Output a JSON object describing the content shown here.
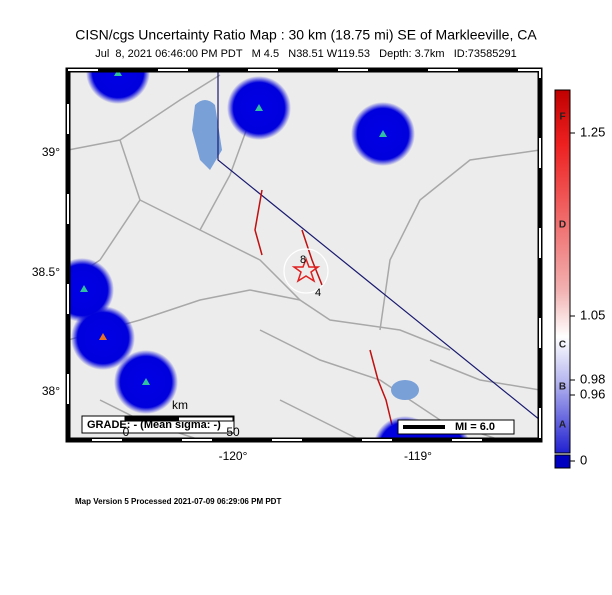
{
  "header": {
    "title": "CISN/cgs Uncertainty Ratio Map : 30 km (18.75 mi) SE of Markleeville, CA",
    "subtitle": "Jul  8, 2021 06:46:00 PM PDT   M 4.5   N38.51 W119.53   Depth: 3.7km   ID:73585291"
  },
  "map": {
    "lat_labels": [
      "39°",
      "38.5°",
      "38°"
    ],
    "lon_labels": [
      "-120°",
      "-119°"
    ],
    "contour_labels": [
      "8",
      "4"
    ],
    "scale_bar": {
      "unit": "km",
      "start": "0",
      "end": "50"
    },
    "grade_box": "GRADE: - (Mean sigma: -)",
    "mi_legend": "MI = 6.0"
  },
  "colorbar": {
    "ticks": [
      "1.25",
      "1.05",
      "0.98",
      "0.96",
      "0"
    ],
    "grades": [
      "F",
      "D",
      "C",
      "B",
      "A"
    ]
  },
  "footer": "Map Version 5 Processed 2021-07-09 06:29:06 PM PDT"
}
